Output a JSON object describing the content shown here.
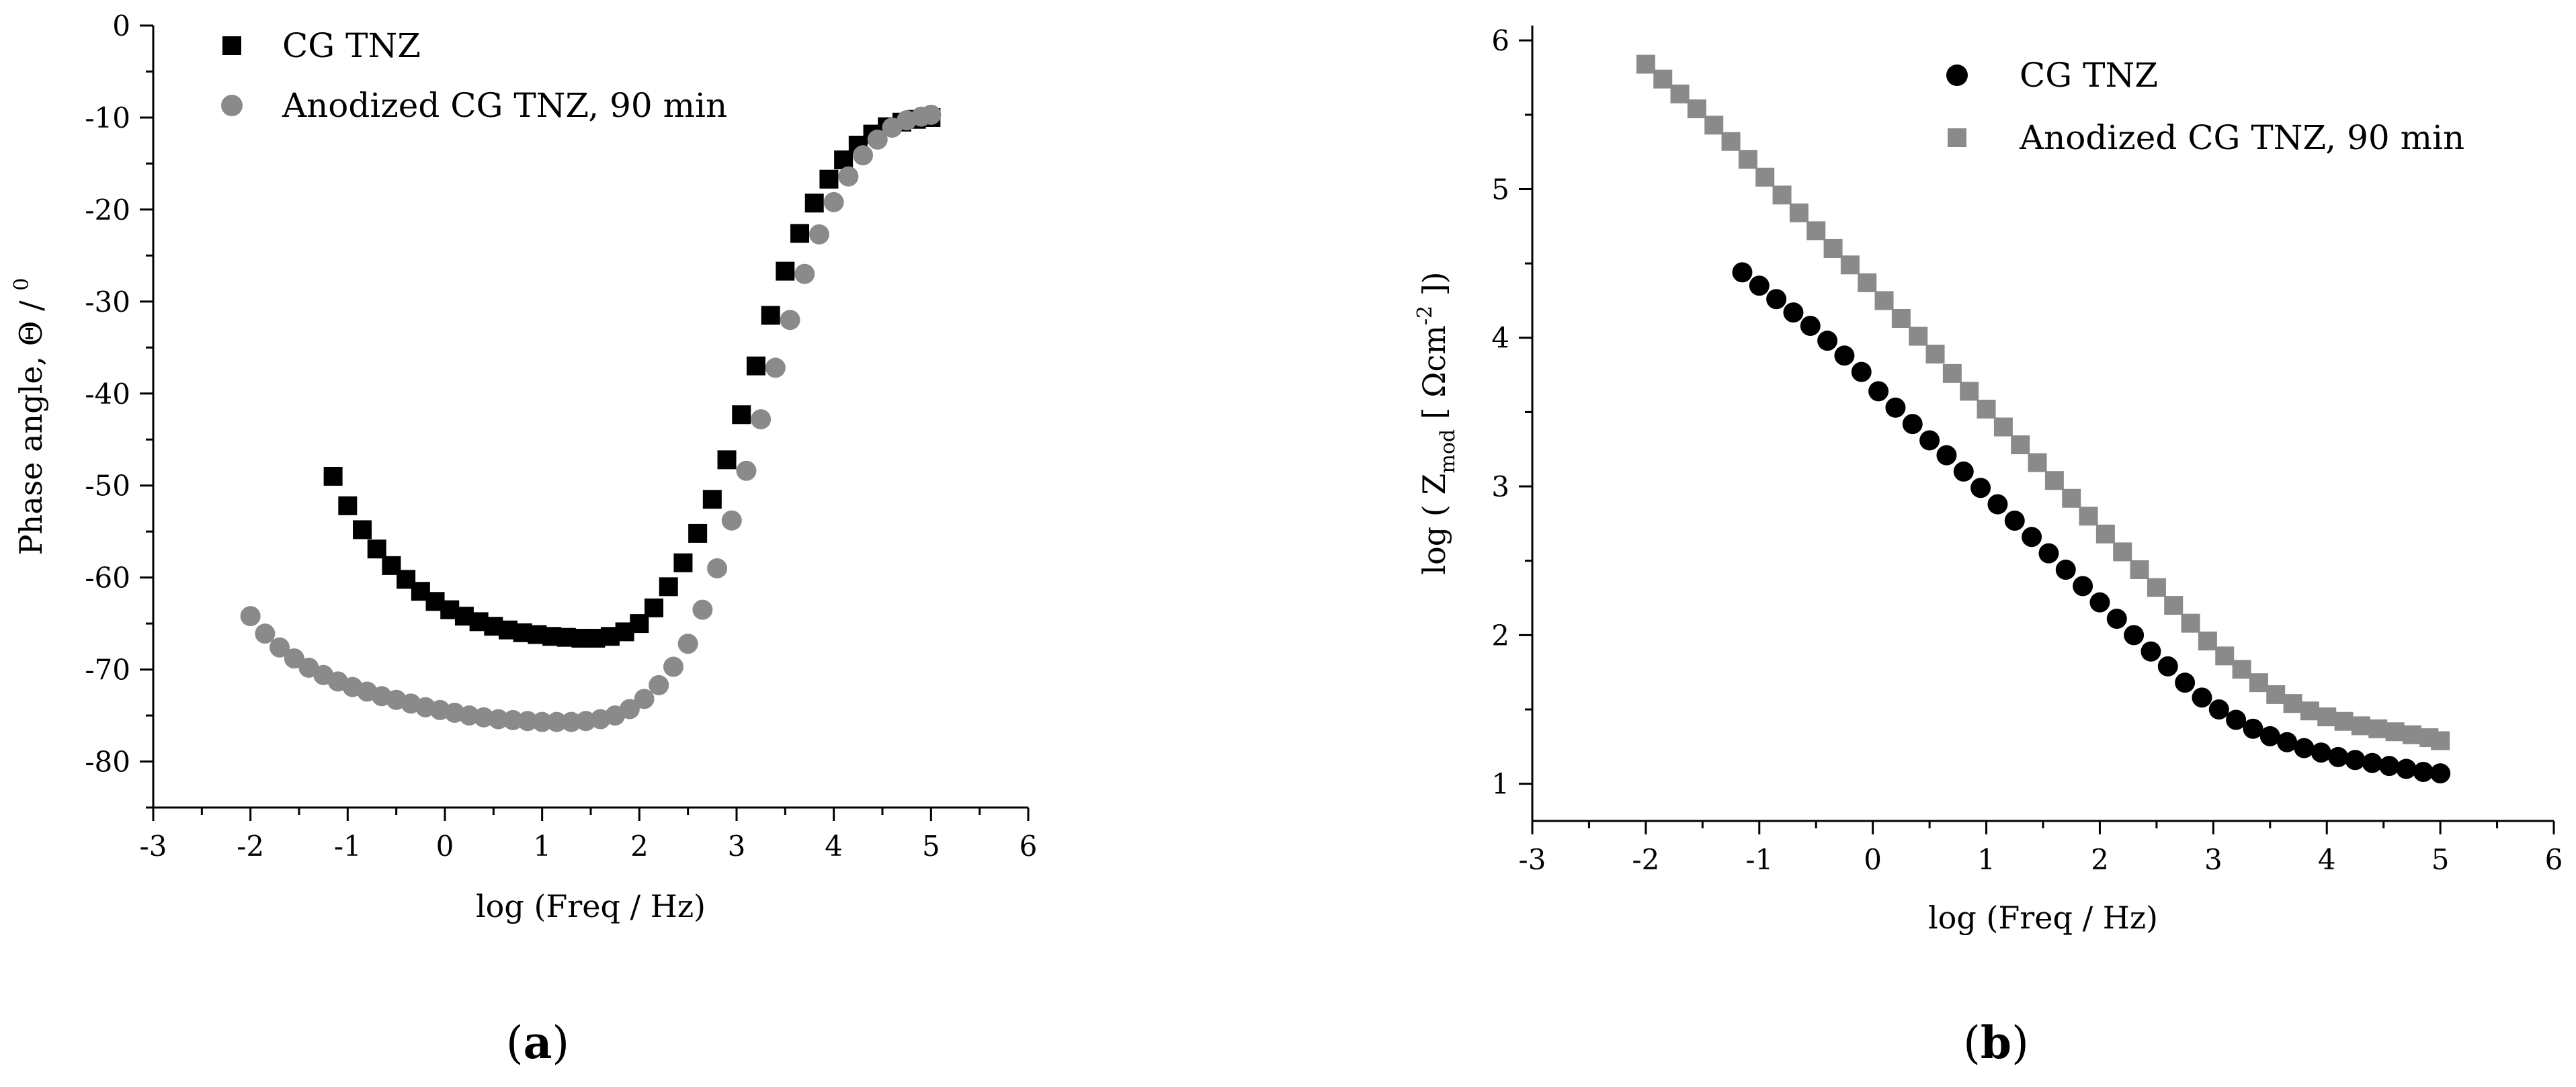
{
  "chart_data": [
    {
      "type": "scatter",
      "panel_label": "a",
      "xlabel": "log (Freq / Hz)",
      "ylabel": "Phase angle, Θ / ",
      "ylabel_sup": "0",
      "xlim": [
        -3,
        6
      ],
      "ylim": [
        -85,
        0
      ],
      "xticks": [
        -3,
        -2,
        -1,
        0,
        1,
        2,
        3,
        4,
        5,
        6
      ],
      "yticks": [
        0,
        -10,
        -20,
        -30,
        -40,
        -50,
        -60,
        -70,
        -80
      ],
      "grid": false,
      "legend_position": "top-left",
      "series": [
        {
          "name": "CG TNZ",
          "marker": "square",
          "color": "#000000",
          "x": [
            -1.15,
            -1.0,
            -0.85,
            -0.7,
            -0.55,
            -0.4,
            -0.25,
            -0.1,
            0.05,
            0.2,
            0.35,
            0.5,
            0.65,
            0.8,
            0.95,
            1.1,
            1.25,
            1.4,
            1.55,
            1.7,
            1.85,
            2.0,
            2.15,
            2.3,
            2.45,
            2.6,
            2.75,
            2.9,
            3.05,
            3.2,
            3.35,
            3.5,
            3.65,
            3.8,
            3.95,
            4.1,
            4.25,
            4.4,
            4.55,
            4.7,
            4.85,
            5.0
          ],
          "y": [
            -49,
            -52.2,
            -54.8,
            -56.9,
            -58.7,
            -60.2,
            -61.5,
            -62.6,
            -63.5,
            -64.2,
            -64.8,
            -65.3,
            -65.7,
            -66.0,
            -66.2,
            -66.4,
            -66.5,
            -66.6,
            -66.6,
            -66.4,
            -65.9,
            -65.0,
            -63.3,
            -61.0,
            -58.4,
            -55.2,
            -51.5,
            -47.2,
            -42.3,
            -37.0,
            -31.5,
            -26.7,
            -22.6,
            -19.3,
            -16.7,
            -14.6,
            -13.0,
            -11.8,
            -11.0,
            -10.5,
            -10.2,
            -10.0
          ]
        },
        {
          "name": "Anodized CG TNZ, 90 min",
          "marker": "circle",
          "color": "#8a8a8a",
          "x": [
            -2.0,
            -1.85,
            -1.7,
            -1.55,
            -1.4,
            -1.25,
            -1.1,
            -0.95,
            -0.8,
            -0.65,
            -0.5,
            -0.35,
            -0.2,
            -0.05,
            0.1,
            0.25,
            0.4,
            0.55,
            0.7,
            0.85,
            1.0,
            1.15,
            1.3,
            1.45,
            1.6,
            1.75,
            1.9,
            2.05,
            2.2,
            2.35,
            2.5,
            2.65,
            2.8,
            2.95,
            3.1,
            3.25,
            3.4,
            3.55,
            3.7,
            3.85,
            4.0,
            4.15,
            4.3,
            4.45,
            4.6,
            4.75,
            4.9,
            5.0
          ],
          "y": [
            -64.2,
            -66.1,
            -67.6,
            -68.8,
            -69.8,
            -70.6,
            -71.3,
            -71.9,
            -72.4,
            -72.9,
            -73.3,
            -73.7,
            -74.1,
            -74.4,
            -74.7,
            -75.0,
            -75.2,
            -75.4,
            -75.5,
            -75.6,
            -75.7,
            -75.7,
            -75.7,
            -75.6,
            -75.4,
            -75.0,
            -74.3,
            -73.2,
            -71.7,
            -69.7,
            -67.2,
            -63.5,
            -59.0,
            -53.8,
            -48.4,
            -42.8,
            -37.2,
            -32.0,
            -27.0,
            -22.7,
            -19.2,
            -16.4,
            -14.1,
            -12.4,
            -11.1,
            -10.3,
            -9.9,
            -9.7
          ]
        }
      ]
    },
    {
      "type": "scatter",
      "panel_label": "b",
      "xlabel": "log (Freq / Hz)",
      "ylabel_parts": [
        "log ( Z",
        "mod",
        " [ Ωcm",
        "-2",
        " ])"
      ],
      "xlim": [
        -3,
        6
      ],
      "ylim": [
        0.75,
        6.1
      ],
      "xticks": [
        -3,
        -2,
        -1,
        0,
        1,
        2,
        3,
        4,
        5,
        6
      ],
      "yticks": [
        1,
        2,
        3,
        4,
        5,
        6
      ],
      "grid": false,
      "legend_position": "top-right",
      "series": [
        {
          "name": "CG TNZ",
          "marker": "circle",
          "color": "#000000",
          "x": [
            -1.15,
            -1.0,
            -0.85,
            -0.7,
            -0.55,
            -0.4,
            -0.25,
            -0.1,
            0.05,
            0.2,
            0.35,
            0.5,
            0.65,
            0.8,
            0.95,
            1.1,
            1.25,
            1.4,
            1.55,
            1.7,
            1.85,
            2.0,
            2.15,
            2.3,
            2.45,
            2.6,
            2.75,
            2.9,
            3.05,
            3.2,
            3.35,
            3.5,
            3.65,
            3.8,
            3.95,
            4.1,
            4.25,
            4.4,
            4.55,
            4.7,
            4.85,
            5.0
          ],
          "y": [
            4.44,
            4.35,
            4.26,
            4.17,
            4.08,
            3.98,
            3.88,
            3.77,
            3.64,
            3.53,
            3.42,
            3.31,
            3.21,
            3.1,
            2.99,
            2.88,
            2.77,
            2.66,
            2.55,
            2.44,
            2.33,
            2.22,
            2.11,
            2.0,
            1.89,
            1.79,
            1.68,
            1.58,
            1.5,
            1.43,
            1.37,
            1.32,
            1.28,
            1.24,
            1.21,
            1.18,
            1.16,
            1.14,
            1.12,
            1.1,
            1.08,
            1.07
          ]
        },
        {
          "name": "Anodized CG TNZ, 90 min",
          "marker": "square",
          "color": "#8a8a8a",
          "x": [
            -2.0,
            -1.85,
            -1.7,
            -1.55,
            -1.4,
            -1.25,
            -1.1,
            -0.95,
            -0.8,
            -0.65,
            -0.5,
            -0.35,
            -0.2,
            -0.05,
            0.1,
            0.25,
            0.4,
            0.55,
            0.7,
            0.85,
            1.0,
            1.15,
            1.3,
            1.45,
            1.6,
            1.75,
            1.9,
            2.05,
            2.2,
            2.35,
            2.5,
            2.65,
            2.8,
            2.95,
            3.1,
            3.25,
            3.4,
            3.55,
            3.7,
            3.85,
            4.0,
            4.15,
            4.3,
            4.45,
            4.6,
            4.75,
            4.9,
            5.0
          ],
          "y": [
            5.84,
            5.74,
            5.64,
            5.54,
            5.43,
            5.32,
            5.2,
            5.08,
            4.96,
            4.84,
            4.72,
            4.6,
            4.49,
            4.37,
            4.25,
            4.13,
            4.01,
            3.89,
            3.76,
            3.64,
            3.52,
            3.4,
            3.28,
            3.16,
            3.04,
            2.92,
            2.8,
            2.68,
            2.56,
            2.44,
            2.32,
            2.2,
            2.08,
            1.96,
            1.86,
            1.77,
            1.68,
            1.6,
            1.54,
            1.49,
            1.45,
            1.42,
            1.39,
            1.37,
            1.35,
            1.33,
            1.31,
            1.29
          ]
        }
      ]
    }
  ]
}
